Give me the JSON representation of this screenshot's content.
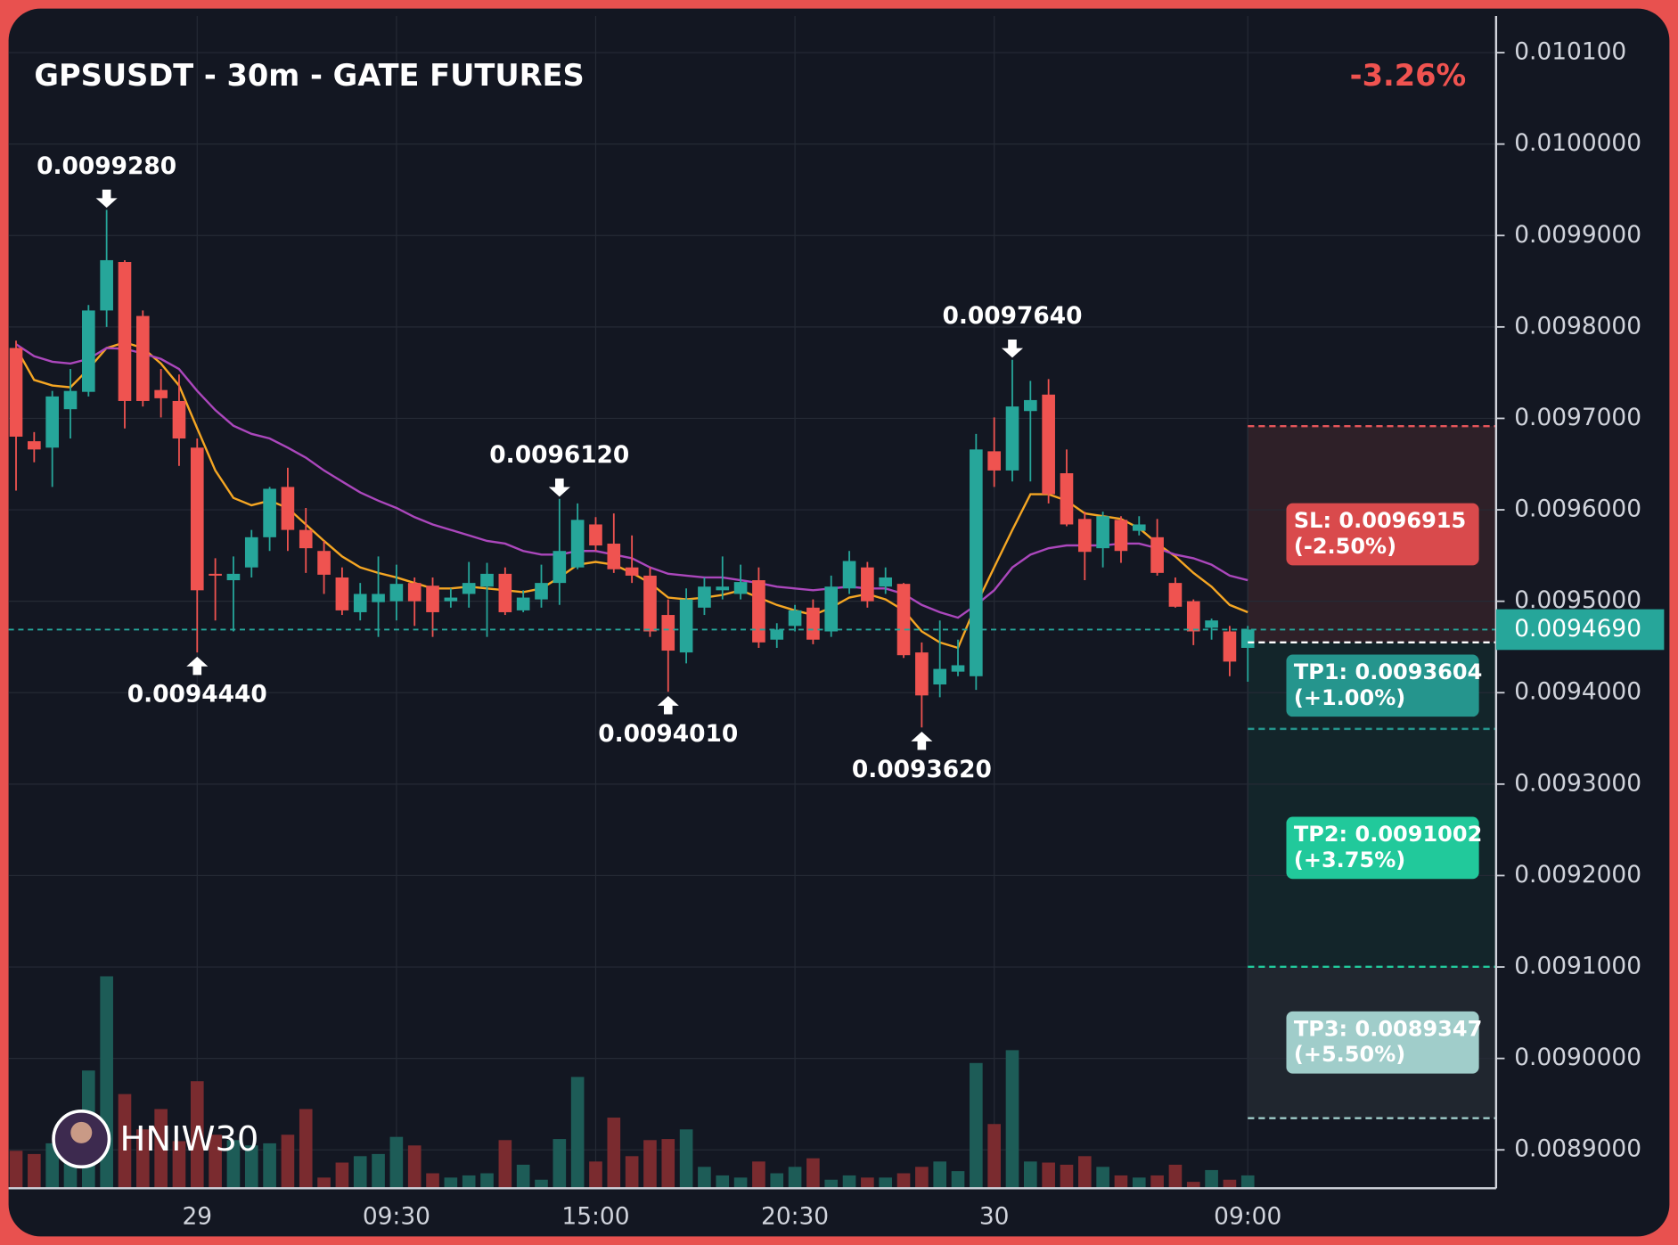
{
  "chart_data": {
    "type": "candlestick",
    "title": "GPSUSDT - 30m - GATE FUTURES",
    "change": "-3.26%",
    "watermark": "HNIW30",
    "categories": [
      null,
      null,
      null,
      null,
      null,
      null,
      null,
      null,
      null,
      null,
      "29",
      null,
      null,
      null,
      null,
      null,
      null,
      null,
      null,
      null,
      null,
      "09:30",
      null,
      null,
      null,
      null,
      null,
      null,
      null,
      null,
      null,
      null,
      "15:00",
      null,
      null,
      null,
      null,
      null,
      null,
      null,
      null,
      null,
      null,
      "20:30",
      null,
      null,
      null,
      null,
      null,
      null,
      null,
      null,
      null,
      null,
      "30",
      null,
      null,
      null,
      null,
      null,
      null,
      null,
      null,
      null,
      null,
      null,
      null,
      null,
      "09:00"
    ],
    "open": [
      0.009777,
      0.009675,
      0.009668,
      0.00971,
      0.009729,
      0.009818,
      0.009871,
      0.009812,
      0.009731,
      0.009719,
      0.009668,
      0.00953,
      0.009523,
      0.009537,
      0.00957,
      0.009625,
      0.009578,
      0.009555,
      0.009526,
      0.009488,
      0.009499,
      0.0095,
      0.00952,
      0.009517,
      0.0095,
      0.009508,
      0.009516,
      0.00953,
      0.00949,
      0.009502,
      0.00952,
      0.009537,
      0.009584,
      0.009563,
      0.009537,
      0.009528,
      0.009485,
      0.009444,
      0.009493,
      0.009512,
      0.009508,
      0.009523,
      0.009458,
      0.009473,
      0.009493,
      0.009467,
      0.009514,
      0.009537,
      0.009516,
      0.009519,
      0.009444,
      0.009409,
      0.009423,
      0.009418,
      0.009664,
      0.009643,
      0.009708,
      0.009726,
      0.00964,
      0.00959,
      0.009558,
      0.009589,
      0.009577,
      0.00957,
      0.00952,
      0.0095,
      0.009471,
      0.009467,
      0.009449
    ],
    "high": [
      0.009785,
      0.009685,
      0.00973,
      0.009754,
      0.009824,
      0.009928,
      0.009873,
      0.009818,
      0.009754,
      0.009748,
      0.009678,
      0.009547,
      0.009549,
      0.009578,
      0.009625,
      0.009646,
      0.009602,
      0.009566,
      0.009537,
      0.00952,
      0.009549,
      0.00954,
      0.009526,
      0.009526,
      0.009514,
      0.009543,
      0.009542,
      0.009537,
      0.009512,
      0.00954,
      0.009612,
      0.009607,
      0.009592,
      0.009596,
      0.009572,
      0.009537,
      0.009502,
      0.009514,
      0.009526,
      0.009549,
      0.00954,
      0.009537,
      0.009476,
      0.009496,
      0.009502,
      0.009528,
      0.009555,
      0.009543,
      0.009537,
      0.00952,
      0.009455,
      0.009479,
      0.009458,
      0.009683,
      0.009701,
      0.009764,
      0.009741,
      0.009743,
      0.009666,
      0.009598,
      0.009598,
      0.009593,
      0.009593,
      0.00959,
      0.009526,
      0.009502,
      0.009481,
      0.009473,
      0.009473
    ],
    "low": [
      0.009621,
      0.009652,
      0.009625,
      0.009678,
      0.009724,
      0.0098,
      0.009689,
      0.009713,
      0.009701,
      0.009648,
      0.009444,
      0.009479,
      0.009467,
      0.009526,
      0.009555,
      0.009555,
      0.009531,
      0.009508,
      0.009485,
      0.009479,
      0.009461,
      0.009479,
      0.009473,
      0.009461,
      0.009493,
      0.009493,
      0.009461,
      0.009485,
      0.009488,
      0.009493,
      0.009496,
      0.009535,
      0.009555,
      0.009531,
      0.00952,
      0.009461,
      0.009401,
      0.009432,
      0.009485,
      0.009502,
      0.009502,
      0.009449,
      0.009449,
      0.009467,
      0.009453,
      0.009461,
      0.009508,
      0.009493,
      0.009508,
      0.009438,
      0.009362,
      0.009395,
      0.009418,
      0.009403,
      0.009625,
      0.009631,
      0.009631,
      0.009607,
      0.009582,
      0.009523,
      0.009537,
      0.009542,
      0.009572,
      0.009528,
      0.009493,
      0.009452,
      0.009458,
      0.009418,
      0.009412
    ],
    "close": [
      0.00968,
      0.009666,
      0.009724,
      0.00973,
      0.009818,
      0.009873,
      0.009719,
      0.009719,
      0.009722,
      0.009678,
      0.009512,
      0.009528,
      0.00953,
      0.00957,
      0.009623,
      0.009578,
      0.009558,
      0.009529,
      0.00949,
      0.009508,
      0.009508,
      0.009519,
      0.0095,
      0.009488,
      0.009504,
      0.00952,
      0.00953,
      0.009488,
      0.009504,
      0.00952,
      0.009555,
      0.009589,
      0.009561,
      0.009535,
      0.009528,
      0.009467,
      0.009446,
      0.009502,
      0.009516,
      0.009516,
      0.009521,
      0.009455,
      0.009469,
      0.00949,
      0.009458,
      0.009516,
      0.009544,
      0.0095,
      0.009526,
      0.009441,
      0.009397,
      0.009426,
      0.00943,
      0.009666,
      0.009643,
      0.009713,
      0.00972,
      0.009617,
      0.009584,
      0.009554,
      0.009593,
      0.009555,
      0.009584,
      0.009531,
      0.009494,
      0.009467,
      0.009479,
      0.009434,
      0.009469
    ],
    "volume": [
      35,
      32,
      42,
      50,
      110,
      198,
      88,
      55,
      74,
      44,
      100,
      50,
      45,
      40,
      42,
      50,
      74,
      10,
      24,
      30,
      32,
      48,
      40,
      14,
      10,
      12,
      14,
      45,
      22,
      8,
      46,
      104,
      25,
      66,
      30,
      45,
      46,
      55,
      20,
      12,
      10,
      25,
      14,
      20,
      28,
      8,
      12,
      10,
      10,
      14,
      20,
      25,
      16,
      117,
      60,
      129,
      25,
      24,
      22,
      30,
      20,
      12,
      10,
      12,
      22,
      6,
      17,
      8,
      12
    ],
    "volume_ylim": [
      0,
      200
    ],
    "colors": {
      "up": "#26a69a",
      "down": "#ef5350",
      "up_volume": "#1d5c57",
      "down_volume": "#7a2b2f"
    },
    "lines": [
      {
        "color": "#f5a623",
        "values": [
          0.009777,
          0.009742,
          0.009736,
          0.009734,
          0.009754,
          0.009777,
          0.009783,
          0.009777,
          0.00976,
          0.009736,
          0.009689,
          0.009643,
          0.009613,
          0.009605,
          0.00961,
          0.009602,
          0.009584,
          0.009566,
          0.009549,
          0.009537,
          0.009531,
          0.009526,
          0.00952,
          0.009514,
          0.009514,
          0.009516,
          0.009514,
          0.009512,
          0.00951,
          0.009514,
          0.009526,
          0.00954,
          0.009543,
          0.00954,
          0.009531,
          0.00952,
          0.009504,
          0.009502,
          0.009504,
          0.009507,
          0.009512,
          0.009504,
          0.009496,
          0.00949,
          0.009485,
          0.009493,
          0.009504,
          0.009508,
          0.009502,
          0.00949,
          0.009467,
          0.009455,
          0.009449,
          0.009496,
          0.009537,
          0.009578,
          0.009617,
          0.009617,
          0.00961,
          0.009596,
          0.009593,
          0.00959,
          0.00958,
          0.009563,
          0.009549,
          0.009531,
          0.009516,
          0.009496,
          0.009488
        ]
      },
      {
        "color": "#ab47bc",
        "values": [
          0.009781,
          0.009768,
          0.009762,
          0.00976,
          0.009765,
          0.009777,
          0.009776,
          0.009771,
          0.009765,
          0.009754,
          0.00973,
          0.009709,
          0.009692,
          0.009683,
          0.009678,
          0.009668,
          0.009657,
          0.009643,
          0.009631,
          0.009619,
          0.00961,
          0.009602,
          0.009592,
          0.009584,
          0.009578,
          0.009572,
          0.009566,
          0.009563,
          0.009555,
          0.009551,
          0.009551,
          0.009555,
          0.009555,
          0.009551,
          0.009547,
          0.009537,
          0.00953,
          0.009528,
          0.009526,
          0.009526,
          0.009523,
          0.00952,
          0.009516,
          0.009514,
          0.009512,
          0.009514,
          0.009516,
          0.009514,
          0.009514,
          0.009508,
          0.009496,
          0.009488,
          0.009482,
          0.009496,
          0.009512,
          0.009537,
          0.009551,
          0.009558,
          0.009561,
          0.009561,
          0.009561,
          0.009563,
          0.009563,
          0.009558,
          0.009551,
          0.009547,
          0.00954,
          0.009528,
          0.009523
        ]
      }
    ],
    "ylim": [
      0.008858,
      0.01014
    ],
    "yticks": [
      {
        "value": 0.0089,
        "label": "0.0089000"
      },
      {
        "value": 0.009,
        "label": "0.0090000"
      },
      {
        "value": 0.0091,
        "label": "0.0091000"
      },
      {
        "value": 0.0092,
        "label": "0.0092000"
      },
      {
        "value": 0.0093,
        "label": "0.0093000"
      },
      {
        "value": 0.0094,
        "label": "0.0094000"
      },
      {
        "value": 0.0095,
        "label": "0.0095000"
      },
      {
        "value": 0.0096,
        "label": "0.0096000"
      },
      {
        "value": 0.0097,
        "label": "0.0097000"
      },
      {
        "value": 0.0098,
        "label": "0.0098000"
      },
      {
        "value": 0.0099,
        "label": "0.0099000"
      },
      {
        "value": 0.01,
        "label": "0.0100000"
      },
      {
        "value": 0.0101,
        "label": "0.010100"
      }
    ],
    "grid": true,
    "last_price": {
      "value": 0.009469,
      "label": "0.0094690",
      "color": "#26a69a"
    },
    "extremes": [
      {
        "candle": 5,
        "side": "high",
        "value": 0.009928,
        "label": "0.0099280"
      },
      {
        "candle": 10,
        "side": "low",
        "value": 0.009444,
        "label": "0.0094440"
      },
      {
        "candle": 30,
        "side": "high",
        "value": 0.009612,
        "label": "0.0096120"
      },
      {
        "candle": 36,
        "side": "low",
        "value": 0.009401,
        "label": "0.0094010"
      },
      {
        "candle": 50,
        "side": "low",
        "value": 0.009362,
        "label": "0.0093620"
      },
      {
        "candle": 55,
        "side": "high",
        "value": 0.009764,
        "label": "0.0097640"
      }
    ],
    "trade": {
      "entry": 0.009455,
      "stop": {
        "value": 0.0096915,
        "label": "SL: 0.0096915",
        "change": "(-2.50%)",
        "color": "#d94a4c"
      },
      "targets": [
        {
          "value": 0.0093604,
          "label": "TP1: 0.0093604",
          "change": "(+1.00%)",
          "color": "#25958d"
        },
        {
          "value": 0.0091002,
          "label": "TP2: 0.0091002",
          "change": "(+3.75%)",
          "color": "#21c99b"
        },
        {
          "value": 0.0089347,
          "label": "TP3: 0.0089347",
          "change": "(+5.50%)",
          "color": "#a0cdca"
        }
      ]
    }
  }
}
